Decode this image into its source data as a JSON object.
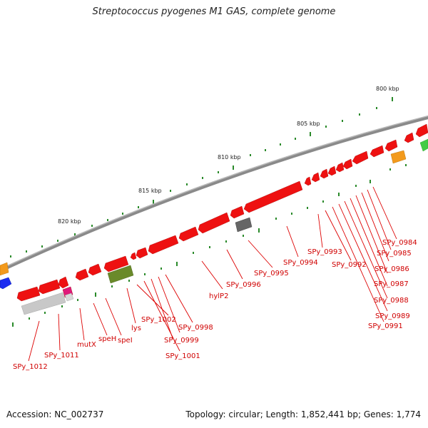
{
  "title": "Streptococcus pyogenes M1 GAS, complete genome",
  "footer": {
    "accession": "Accession: NC_002737",
    "summary": "Topology: circular; Length: 1,852,441 bp; Genes: 1,774"
  },
  "scale_labels": [
    "800 kbp",
    "805 kbp",
    "810 kbp",
    "815 kbp",
    "820 kbp"
  ],
  "gene_labels": [
    "SPy_0984",
    "SPy_0985",
    "SPy_0986",
    "SPy_0987",
    "SPy_0988",
    "SPy_0989",
    "SPy_0991",
    "SPy_0992",
    "SPy_0993",
    "SPy_0994",
    "SPy_0995",
    "SPy_0996",
    "hylP2",
    "SPy_0998",
    "SPy_0999",
    "SPy_1001",
    "SPy_1002",
    "lys",
    "speI",
    "speH",
    "mutX",
    "SPy_1011",
    "SPy_1012"
  ],
  "colors": {
    "backbone": "#8a8a8a",
    "gene": "#ee1111",
    "label_line": "#dd0000",
    "tick": "#2a8a2a",
    "orange": "#f39a1c",
    "olive": "#6a8a2a",
    "gray": "#666666",
    "lightgray": "#c8c8c8",
    "magenta": "#e0187a",
    "blue": "#1c2cf0",
    "green": "#44cc44"
  }
}
